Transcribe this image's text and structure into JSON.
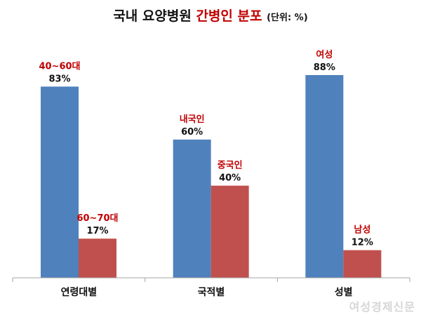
{
  "title": {
    "main": "국내 요양병원",
    "highlight": "간병인 분포",
    "unit": "(단위: %)"
  },
  "colors": {
    "blue": "#4f81bd",
    "red": "#c0504d",
    "label_red": "#c00000",
    "axis": "#a6a6a6"
  },
  "watermark": "여성경제신문",
  "chart_data": {
    "type": "bar",
    "title": "국내 요양병원 간병인 분포 (단위: %)",
    "categories": [
      "연령대별",
      "국적별",
      "성별"
    ],
    "bars": [
      [
        {
          "label": "40~60대",
          "value": 83,
          "display": "83%",
          "color": "blue"
        },
        {
          "label": "60~70대",
          "value": 17,
          "display": "17%",
          "color": "red"
        }
      ],
      [
        {
          "label": "내국인",
          "value": 60,
          "display": "60%",
          "color": "blue"
        },
        {
          "label": "중국인",
          "value": 40,
          "display": "40%",
          "color": "red"
        }
      ],
      [
        {
          "label": "여성",
          "value": 88,
          "display": "88%",
          "color": "blue"
        },
        {
          "label": "남성",
          "value": 12,
          "display": "12%",
          "color": "red"
        }
      ]
    ],
    "ylim": [
      0,
      88
    ],
    "grid": false,
    "legend": "none"
  }
}
